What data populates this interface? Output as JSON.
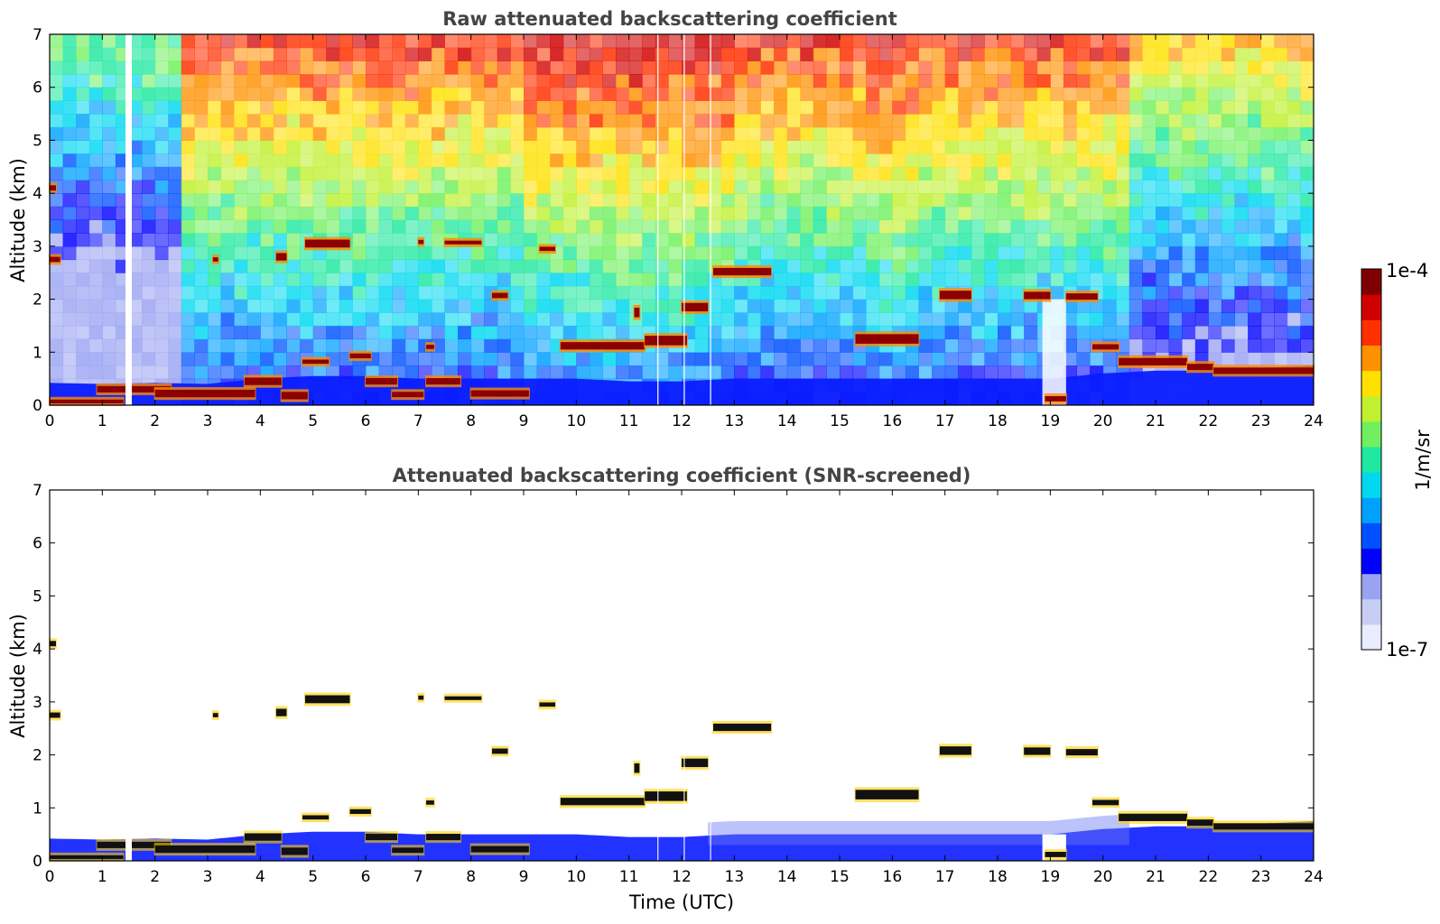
{
  "chart_data": [
    {
      "type": "heatmap",
      "title": "Raw attenuated backscattering coefficient",
      "xlabel": "",
      "ylabel": "Altitude (km)",
      "xlim": [
        0,
        24
      ],
      "ylim": [
        0,
        7
      ],
      "x_ticks": [
        "0",
        "1",
        "2",
        "3",
        "4",
        "5",
        "6",
        "7",
        "8",
        "9",
        "10",
        "11",
        "12",
        "13",
        "14",
        "15",
        "16",
        "17",
        "18",
        "19",
        "20",
        "21",
        "22",
        "23",
        "24"
      ],
      "y_ticks": [
        "0",
        "1",
        "2",
        "3",
        "4",
        "5",
        "6",
        "7"
      ],
      "features": {
        "boundary_layer_top_km": [
          [
            0,
            0.42
          ],
          [
            1,
            0.4
          ],
          [
            2,
            0.42
          ],
          [
            3,
            0.4
          ],
          [
            4,
            0.5
          ],
          [
            5,
            0.55
          ],
          [
            6,
            0.55
          ],
          [
            7,
            0.5
          ],
          [
            8,
            0.5
          ],
          [
            9,
            0.5
          ],
          [
            10,
            0.5
          ],
          [
            11,
            0.45
          ],
          [
            12,
            0.45
          ],
          [
            13,
            0.5
          ],
          [
            14,
            0.5
          ],
          [
            15,
            0.5
          ],
          [
            16,
            0.5
          ],
          [
            17,
            0.5
          ],
          [
            18,
            0.5
          ],
          [
            19,
            0.5
          ],
          [
            20,
            0.6
          ],
          [
            21,
            0.65
          ],
          [
            22,
            0.65
          ],
          [
            23,
            0.7
          ],
          [
            24,
            0.75
          ]
        ],
        "cloud_layers": [
          {
            "t0": 0.0,
            "t1": 0.2,
            "alt": 2.75,
            "th": 0.1
          },
          {
            "t0": 0.0,
            "t1": 0.12,
            "alt": 4.1,
            "th": 0.1
          },
          {
            "t0": 0.0,
            "t1": 1.4,
            "alt": 0.07,
            "th": 0.07
          },
          {
            "t0": 0.9,
            "t1": 2.3,
            "alt": 0.3,
            "th": 0.12
          },
          {
            "t0": 2.0,
            "t1": 3.9,
            "alt": 0.22,
            "th": 0.14
          },
          {
            "t0": 3.1,
            "t1": 3.2,
            "alt": 2.75,
            "th": 0.08
          },
          {
            "t0": 3.7,
            "t1": 4.4,
            "alt": 0.45,
            "th": 0.14
          },
          {
            "t0": 4.3,
            "t1": 4.5,
            "alt": 2.8,
            "th": 0.14
          },
          {
            "t0": 4.4,
            "t1": 4.9,
            "alt": 0.18,
            "th": 0.14
          },
          {
            "t0": 4.85,
            "t1": 5.7,
            "alt": 3.05,
            "th": 0.15
          },
          {
            "t0": 4.8,
            "t1": 5.3,
            "alt": 0.82,
            "th": 0.08
          },
          {
            "t0": 5.7,
            "t1": 6.1,
            "alt": 0.93,
            "th": 0.09
          },
          {
            "t0": 6.0,
            "t1": 6.6,
            "alt": 0.45,
            "th": 0.12
          },
          {
            "t0": 6.5,
            "t1": 7.1,
            "alt": 0.2,
            "th": 0.1
          },
          {
            "t0": 7.0,
            "t1": 7.1,
            "alt": 3.08,
            "th": 0.08
          },
          {
            "t0": 7.15,
            "t1": 7.3,
            "alt": 1.1,
            "th": 0.08
          },
          {
            "t0": 7.15,
            "t1": 7.8,
            "alt": 0.45,
            "th": 0.12
          },
          {
            "t0": 7.5,
            "t1": 8.2,
            "alt": 3.07,
            "th": 0.07
          },
          {
            "t0": 8.0,
            "t1": 9.1,
            "alt": 0.22,
            "th": 0.12
          },
          {
            "t0": 8.4,
            "t1": 8.7,
            "alt": 2.07,
            "th": 0.1
          },
          {
            "t0": 9.3,
            "t1": 9.6,
            "alt": 2.95,
            "th": 0.08
          },
          {
            "t0": 9.7,
            "t1": 11.3,
            "alt": 1.12,
            "th": 0.14
          },
          {
            "t0": 11.3,
            "t1": 12.1,
            "alt": 1.22,
            "th": 0.18
          },
          {
            "t0": 11.1,
            "t1": 11.2,
            "alt": 1.75,
            "th": 0.18
          },
          {
            "t0": 12.0,
            "t1": 12.5,
            "alt": 1.85,
            "th": 0.16
          },
          {
            "t0": 12.6,
            "t1": 13.7,
            "alt": 2.52,
            "th": 0.14
          },
          {
            "t0": 15.3,
            "t1": 16.5,
            "alt": 1.25,
            "th": 0.18
          },
          {
            "t0": 16.9,
            "t1": 17.5,
            "alt": 2.08,
            "th": 0.16
          },
          {
            "t0": 18.5,
            "t1": 19.0,
            "alt": 2.07,
            "th": 0.14
          },
          {
            "t0": 18.9,
            "t1": 19.3,
            "alt": 0.12,
            "th": 0.1
          },
          {
            "t0": 19.3,
            "t1": 19.9,
            "alt": 2.05,
            "th": 0.12
          },
          {
            "t0": 19.8,
            "t1": 20.3,
            "alt": 1.1,
            "th": 0.1
          },
          {
            "t0": 20.3,
            "t1": 21.6,
            "alt": 0.82,
            "th": 0.14
          },
          {
            "t0": 21.6,
            "t1": 22.1,
            "alt": 0.72,
            "th": 0.12
          },
          {
            "t0": 22.1,
            "t1": 24.0,
            "alt": 0.65,
            "th": 0.12
          }
        ]
      }
    },
    {
      "type": "heatmap",
      "title": "Attenuated backscattering coefficient (SNR-screened)",
      "xlabel": "Time (UTC)",
      "ylabel": "Altitude (km)",
      "xlim": [
        0,
        24
      ],
      "ylim": [
        0,
        7
      ],
      "x_ticks": [
        "0",
        "1",
        "2",
        "3",
        "4",
        "5",
        "6",
        "7",
        "8",
        "9",
        "10",
        "11",
        "12",
        "13",
        "14",
        "15",
        "16",
        "17",
        "18",
        "19",
        "20",
        "21",
        "22",
        "23",
        "24"
      ],
      "y_ticks": [
        "0",
        "1",
        "2",
        "3",
        "4",
        "5",
        "6",
        "7"
      ],
      "features": {
        "same_cloud_layers_as_raw": true,
        "background_above_signal": "white (screened)"
      }
    }
  ],
  "colorbar": {
    "max_label": "1e-4",
    "min_label": "1e-7",
    "unit_label": "1/m/sr",
    "colors": [
      "#e9ecfb",
      "#c8cdf5",
      "#9aa3f2",
      "#0000ff",
      "#0050ff",
      "#00a0ff",
      "#00d8f0",
      "#20e8a0",
      "#70f060",
      "#c0f030",
      "#ffe000",
      "#ff9000",
      "#ff3000",
      "#d00000",
      "#7f0000"
    ]
  }
}
